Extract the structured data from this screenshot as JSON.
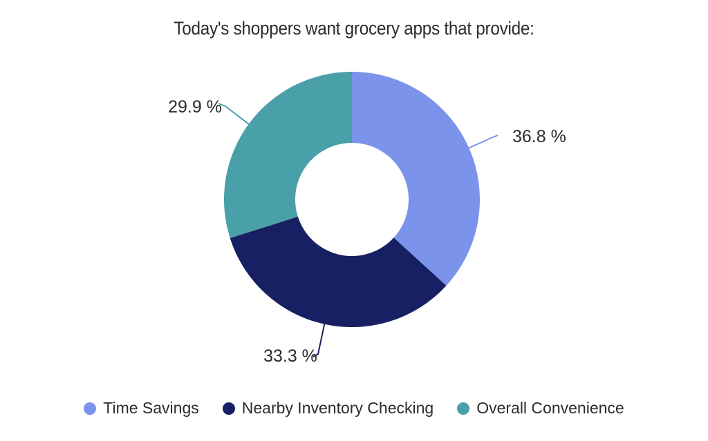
{
  "chart_data": {
    "type": "pie",
    "title": "Today's shoppers want grocery apps that provide:",
    "categories": [
      "Time Savings",
      "Nearby Inventory Checking",
      "Overall Convenience"
    ],
    "values": [
      36.8,
      33.3,
      29.9
    ],
    "value_labels": [
      "36.8 %",
      "33.3 %",
      "29.9 %"
    ],
    "colors": [
      "#7b93ea",
      "#172062",
      "#4aa0a8"
    ],
    "donut": true,
    "legend_position": "bottom"
  }
}
